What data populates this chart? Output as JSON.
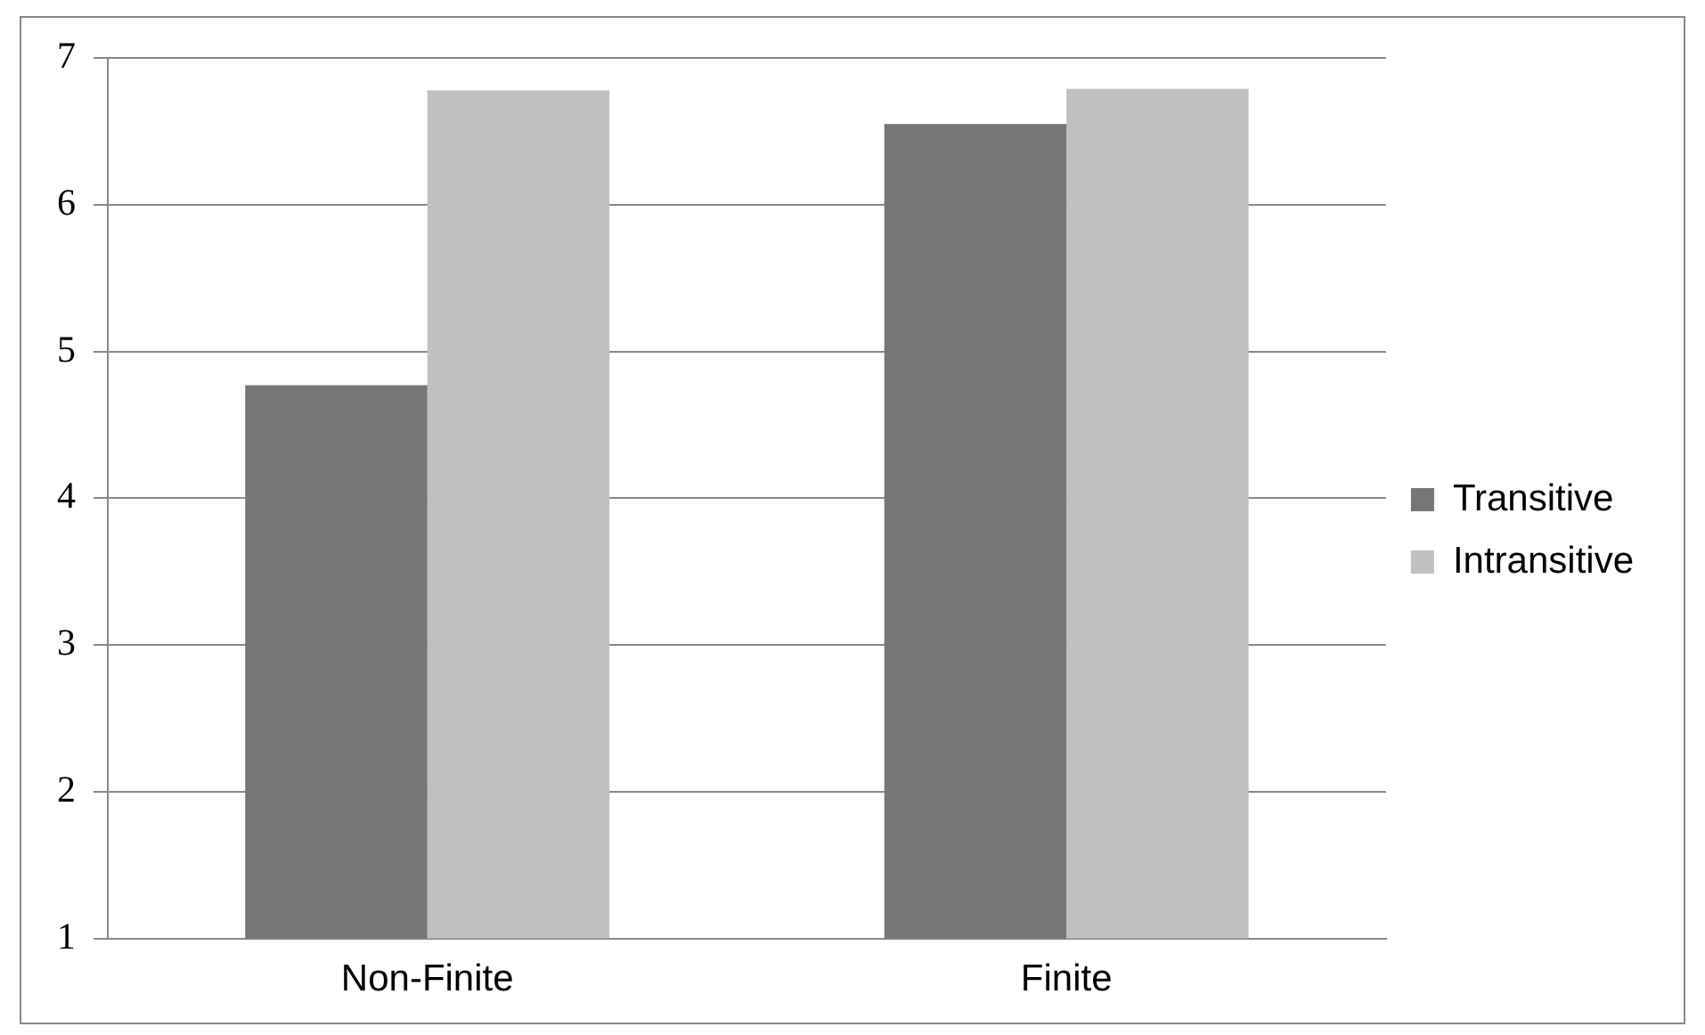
{
  "chart_data": {
    "type": "bar",
    "categories": [
      "Non-Finite",
      "Finite"
    ],
    "series": [
      {
        "name": "Transitive",
        "color": "#767676",
        "values": [
          4.77,
          6.55
        ]
      },
      {
        "name": "Intransitive",
        "color": "#c0c0c0",
        "values": [
          6.78,
          6.79
        ]
      }
    ],
    "ylim": [
      1,
      7
    ],
    "yticks": [
      1,
      2,
      3,
      4,
      5,
      6,
      7
    ],
    "grid": "y",
    "legend": "right"
  }
}
